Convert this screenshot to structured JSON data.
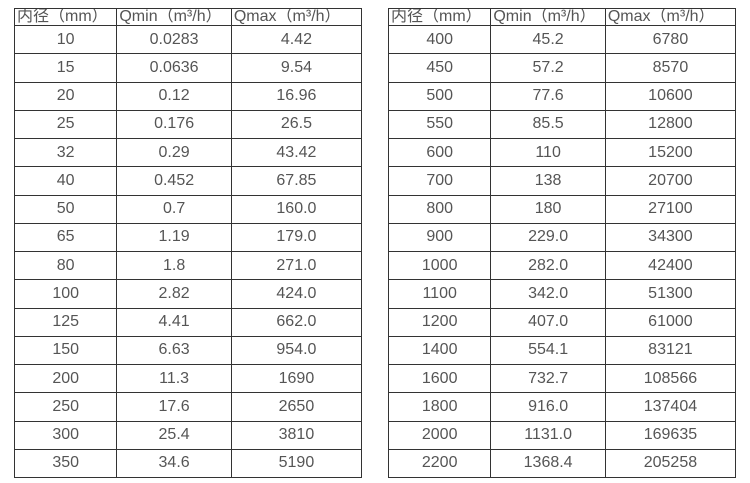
{
  "columns": [
    "内径（mm）",
    "Qmin（m³/h）",
    "Qmax（m³/h）"
  ],
  "left_table": {
    "rows": [
      [
        "10",
        "0.0283",
        "4.42"
      ],
      [
        "15",
        "0.0636",
        "9.54"
      ],
      [
        "20",
        "0.12",
        "16.96"
      ],
      [
        "25",
        "0.176",
        "26.5"
      ],
      [
        "32",
        "0.29",
        "43.42"
      ],
      [
        "40",
        "0.452",
        "67.85"
      ],
      [
        "50",
        "0.7",
        "160.0"
      ],
      [
        "65",
        "1.19",
        "179.0"
      ],
      [
        "80",
        "1.8",
        "271.0"
      ],
      [
        "100",
        "2.82",
        "424.0"
      ],
      [
        "125",
        "4.41",
        "662.0"
      ],
      [
        "150",
        "6.63",
        "954.0"
      ],
      [
        "200",
        "11.3",
        "1690"
      ],
      [
        "250",
        "17.6",
        "2650"
      ],
      [
        "300",
        "25.4",
        "3810"
      ],
      [
        "350",
        "34.6",
        "5190"
      ]
    ]
  },
  "right_table": {
    "rows": [
      [
        "400",
        "45.2",
        "6780"
      ],
      [
        "450",
        "57.2",
        "8570"
      ],
      [
        "500",
        "77.6",
        "10600"
      ],
      [
        "550",
        "85.5",
        "12800"
      ],
      [
        "600",
        "110",
        "15200"
      ],
      [
        "700",
        "138",
        "20700"
      ],
      [
        "800",
        "180",
        "27100"
      ],
      [
        "900",
        "229.0",
        "34300"
      ],
      [
        "1000",
        "282.0",
        "42400"
      ],
      [
        "1100",
        "342.0",
        "51300"
      ],
      [
        "1200",
        "407.0",
        "61000"
      ],
      [
        "1400",
        "554.1",
        "83121"
      ],
      [
        "1600",
        "732.7",
        "108566"
      ],
      [
        "1800",
        "916.0",
        "137404"
      ],
      [
        "2000",
        "1131.0",
        "169635"
      ],
      [
        "2200",
        "1368.4",
        "205258"
      ]
    ]
  },
  "colors": {
    "text": "#555555",
    "border": "#333333",
    "background": "#ffffff"
  }
}
